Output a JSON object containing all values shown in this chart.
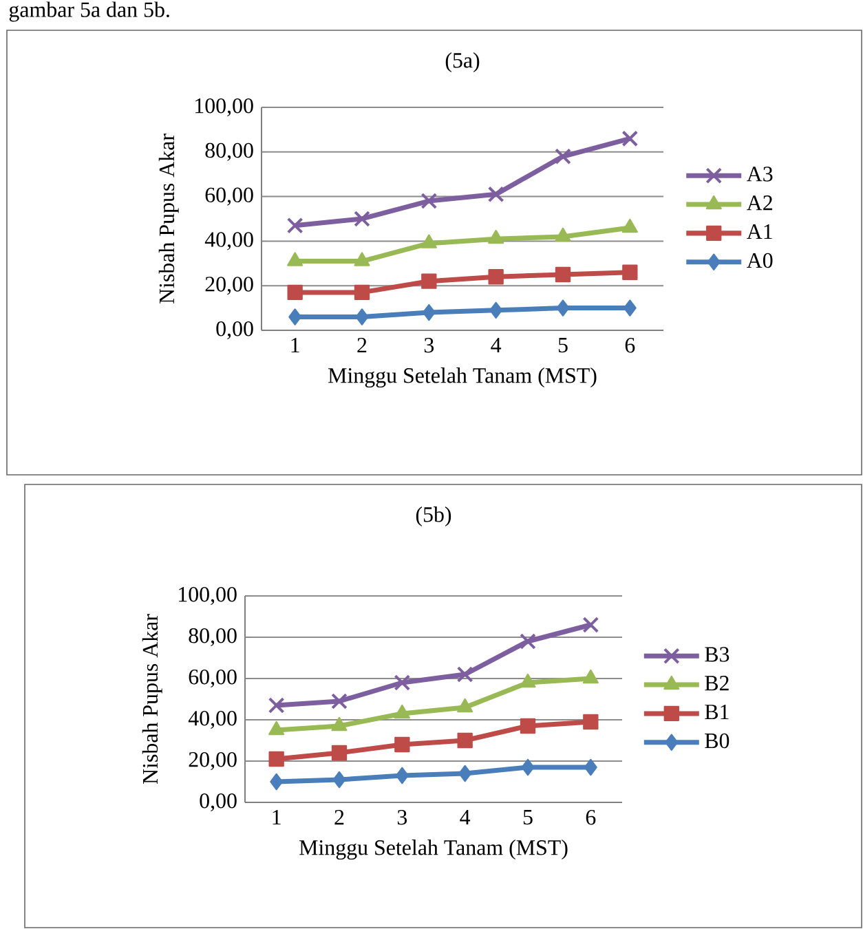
{
  "chart_data": [
    {
      "type": "line",
      "title": "(5a)",
      "xlabel": "Minggu Setelah Tanam (MST)",
      "ylabel": "Nisbah Pupus Akar",
      "annotations": [
        "gambar 5a dan 5b."
      ],
      "categories": [
        "1",
        "2",
        "3",
        "4",
        "5",
        "6"
      ],
      "series": [
        {
          "name": "A0",
          "color": "#4a7ebb",
          "marker": "diamond",
          "values": [
            6,
            6,
            8,
            9,
            10,
            10
          ]
        },
        {
          "name": "A1",
          "color": "#be4b48",
          "marker": "square",
          "values": [
            17,
            17,
            22,
            24,
            25,
            26
          ]
        },
        {
          "name": "A2",
          "color": "#98b954",
          "marker": "triangle",
          "values": [
            31,
            31,
            39,
            41,
            42,
            46
          ]
        },
        {
          "name": "A3",
          "color": "#7d5fa0",
          "marker": "cross",
          "values": [
            47,
            50,
            58,
            61,
            78,
            86
          ]
        }
      ],
      "ylim": [
        0,
        100
      ],
      "yticks": [
        {
          "value": 0,
          "label": "0,00"
        },
        {
          "value": 20,
          "label": "20,00"
        },
        {
          "value": 40,
          "label": "40,00"
        },
        {
          "value": 60,
          "label": "60,00"
        },
        {
          "value": 80,
          "label": "80,00"
        },
        {
          "value": 100,
          "label": "100,00"
        }
      ],
      "grid": "y",
      "legend": "right"
    },
    {
      "type": "line",
      "title": "(5b)",
      "xlabel": "Minggu Setelah Tanam (MST)",
      "ylabel": "Nisbah Pupus Akar",
      "categories": [
        "1",
        "2",
        "3",
        "4",
        "5",
        "6"
      ],
      "series": [
        {
          "name": "B0",
          "color": "#4a7ebb",
          "marker": "diamond",
          "values": [
            10,
            11,
            13,
            14,
            17,
            17
          ]
        },
        {
          "name": "B1",
          "color": "#be4b48",
          "marker": "square",
          "values": [
            21,
            24,
            28,
            30,
            37,
            39
          ]
        },
        {
          "name": "B2",
          "color": "#98b954",
          "marker": "triangle",
          "values": [
            35,
            37,
            43,
            46,
            58,
            60
          ]
        },
        {
          "name": "B3",
          "color": "#7d5fa0",
          "marker": "cross",
          "values": [
            47,
            49,
            58,
            62,
            78,
            86
          ]
        }
      ],
      "ylim": [
        0,
        100
      ],
      "yticks": [
        {
          "value": 0,
          "label": "0,00"
        },
        {
          "value": 20,
          "label": "20,00"
        },
        {
          "value": 40,
          "label": "40,00"
        },
        {
          "value": 60,
          "label": "60,00"
        },
        {
          "value": 80,
          "label": "80,00"
        },
        {
          "value": 100,
          "label": "100,00"
        }
      ],
      "grid": "y",
      "legend": "right"
    }
  ]
}
